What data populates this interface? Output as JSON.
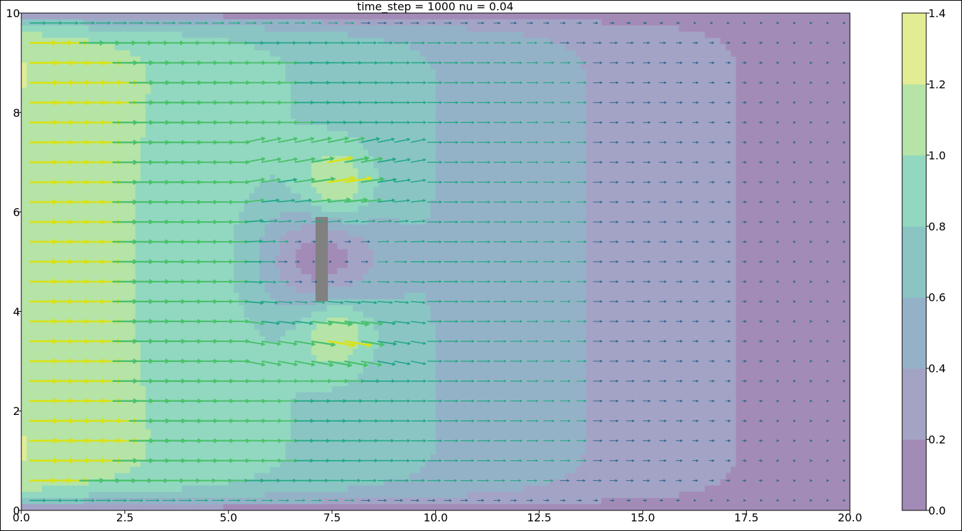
{
  "chart_data": {
    "type": "contourf+quiver",
    "title": "time_step = 1000 nu = 0.04",
    "xlabel": "",
    "ylabel": "",
    "xlim": [
      0,
      20
    ],
    "ylim": [
      0,
      10
    ],
    "x_ticks": [
      "0.0",
      "2.5",
      "5.0",
      "7.5",
      "10.0",
      "12.5",
      "15.0",
      "17.5",
      "20.0"
    ],
    "y_ticks": [
      "0",
      "2",
      "4",
      "6",
      "8",
      "10"
    ],
    "colorbar": {
      "ticks": [
        "0.0",
        "0.2",
        "0.4",
        "0.6",
        "0.8",
        "1.0",
        "1.2",
        "1.4"
      ],
      "levels": [
        0.0,
        0.2,
        0.4,
        0.6,
        0.8,
        1.0,
        1.2,
        1.4
      ],
      "colors": [
        "#a38bb7",
        "#a3a3c5",
        "#94b2c7",
        "#8ac5c4",
        "#92d8c0",
        "#b5e4a6",
        "#e4ec93"
      ]
    },
    "obstacle": {
      "x": [
        7.1,
        7.4
      ],
      "y": [
        4.2,
        5.9
      ],
      "color": "#808080"
    },
    "flow_description": {
      "inflow_speed_left": 1.1,
      "outflow_speed_right": 0.05,
      "wake_region_speed": 0.1,
      "peak_speed_near_obstacle": 1.3
    },
    "grid": false
  }
}
